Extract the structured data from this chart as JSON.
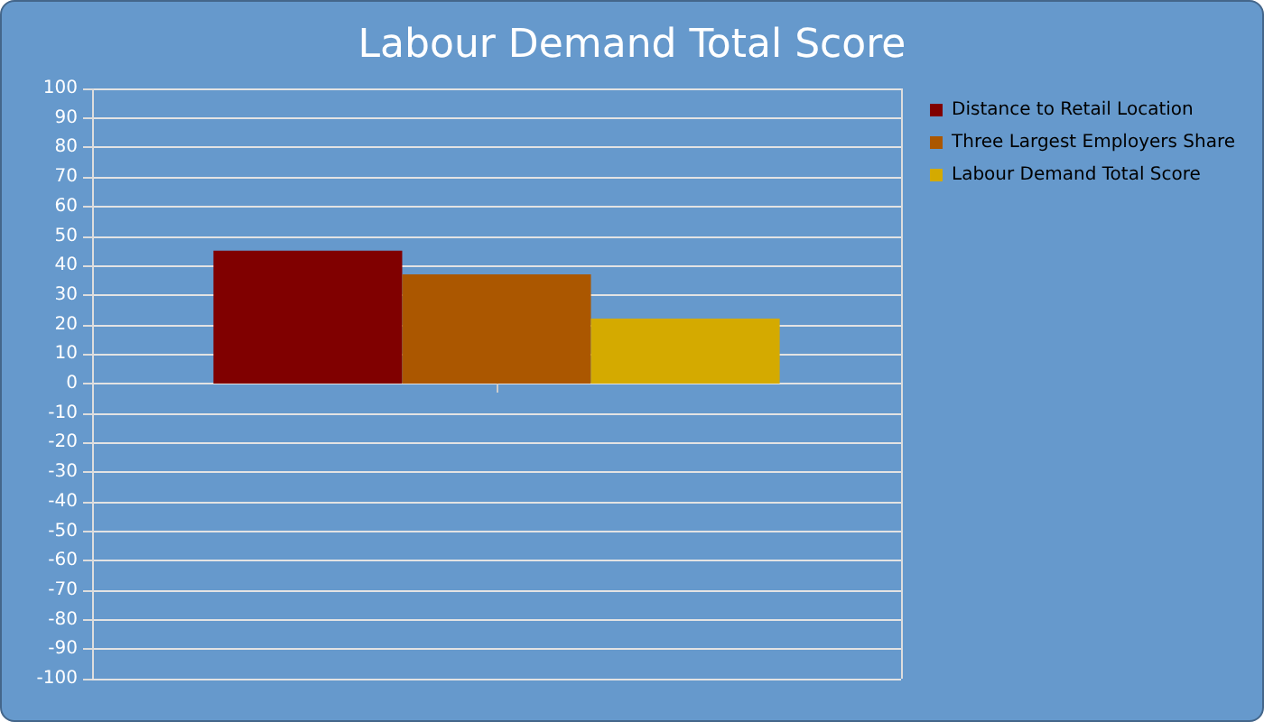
{
  "chart_data": {
    "type": "bar",
    "title": "Labour Demand Total Score",
    "categories": [
      null
    ],
    "series": [
      {
        "name": "Distance to Retail Location",
        "color": "#800000",
        "values": [
          45
        ]
      },
      {
        "name": "Three Largest Employers Share",
        "color": "#ab5700",
        "values": [
          37
        ]
      },
      {
        "name": "Labour Demand Total Score",
        "color": "#d4aa00",
        "values": [
          22
        ]
      }
    ],
    "ylim": [
      -100,
      100
    ],
    "yticks": [
      -100,
      -90,
      -80,
      -70,
      -60,
      -50,
      -40,
      -30,
      -20,
      -10,
      0,
      10,
      20,
      30,
      40,
      50,
      60,
      70,
      80,
      90,
      100
    ],
    "grid": true,
    "legend": "right"
  }
}
